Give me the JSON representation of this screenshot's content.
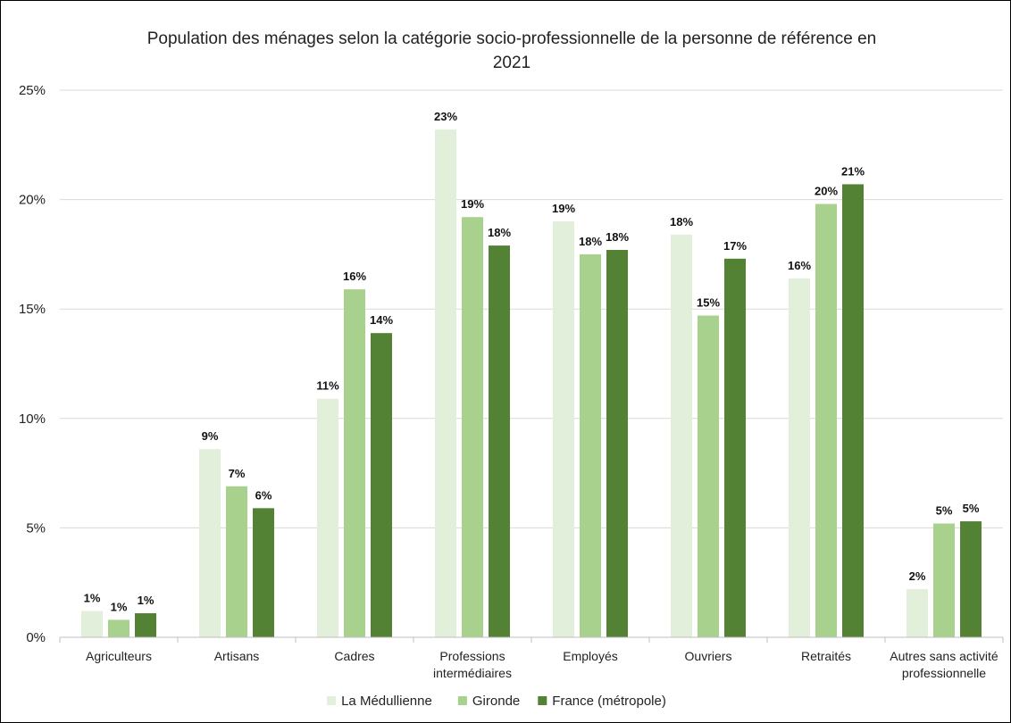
{
  "chart_data": {
    "type": "bar",
    "title": "Population des ménages selon la catégorie socio-professionnelle de la personne de référence en 2021",
    "title_lines": [
      "Population des ménages selon la catégorie socio-professionnelle de la personne de référence en",
      "2021"
    ],
    "categories": [
      "Agriculteurs",
      "Artisans",
      "Cadres",
      "Professions intermédiaires",
      "Employés",
      "Ouvriers",
      "Retraités",
      "Autres sans activité professionnelle"
    ],
    "category_lines": [
      [
        "Agriculteurs"
      ],
      [
        "Artisans"
      ],
      [
        "Cadres"
      ],
      [
        "Professions",
        "intermédiaires"
      ],
      [
        "Employés"
      ],
      [
        "Ouvriers"
      ],
      [
        "Retraités"
      ],
      [
        "Autres sans activité",
        "professionnelle"
      ]
    ],
    "series": [
      {
        "name": "La Médullienne",
        "color": "#e2efda",
        "values": [
          1.2,
          8.6,
          10.9,
          23.2,
          19.0,
          18.4,
          16.4,
          2.2
        ],
        "labels": [
          "1%",
          "9%",
          "11%",
          "23%",
          "19%",
          "18%",
          "16%",
          "2%"
        ]
      },
      {
        "name": "Gironde",
        "color": "#a9d18e",
        "values": [
          0.8,
          6.9,
          15.9,
          19.2,
          17.5,
          14.7,
          19.8,
          5.2
        ],
        "labels": [
          "1%",
          "7%",
          "16%",
          "19%",
          "18%",
          "15%",
          "20%",
          "5%"
        ]
      },
      {
        "name": "France (métropole)",
        "color": "#548235",
        "values": [
          1.1,
          5.9,
          13.9,
          17.9,
          17.7,
          17.3,
          20.7,
          5.3
        ],
        "labels": [
          "1%",
          "6%",
          "14%",
          "18%",
          "18%",
          "17%",
          "21%",
          "5%"
        ]
      }
    ],
    "ylim": [
      0,
      25
    ],
    "yticks": [
      0,
      5,
      10,
      15,
      20,
      25
    ],
    "ytick_labels": [
      "0%",
      "5%",
      "10%",
      "15%",
      "20%",
      "25%"
    ],
    "xlabel": "",
    "ylabel": "",
    "grid": true,
    "legend_position": "bottom"
  },
  "colors": {
    "gridline": "#d9d9d9",
    "axis": "#bfbfbf"
  }
}
